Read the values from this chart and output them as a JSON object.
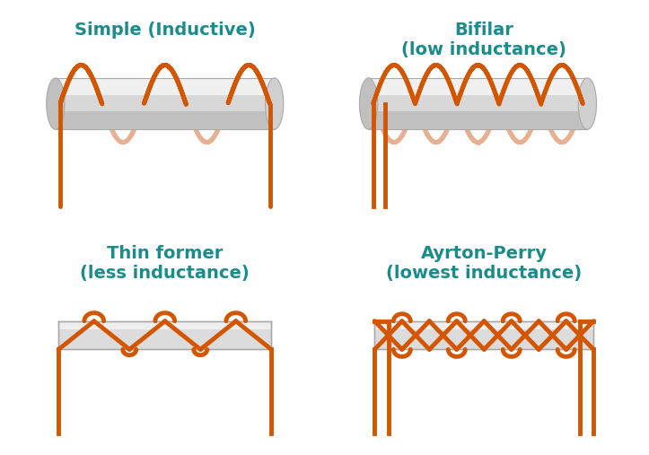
{
  "title_color": "#1a8c8c",
  "wire_color": "#d45500",
  "wire_back_color": "#e8b090",
  "bg_color": "#ffffff",
  "titles": [
    "Simple (Inductive)",
    "Bifilar\n(low inductance)",
    "Thin former\n(less inductance)",
    "Ayrton-Perry\n(lowest inductance)"
  ],
  "title_fontsize": 14,
  "wire_lw": 3.5
}
